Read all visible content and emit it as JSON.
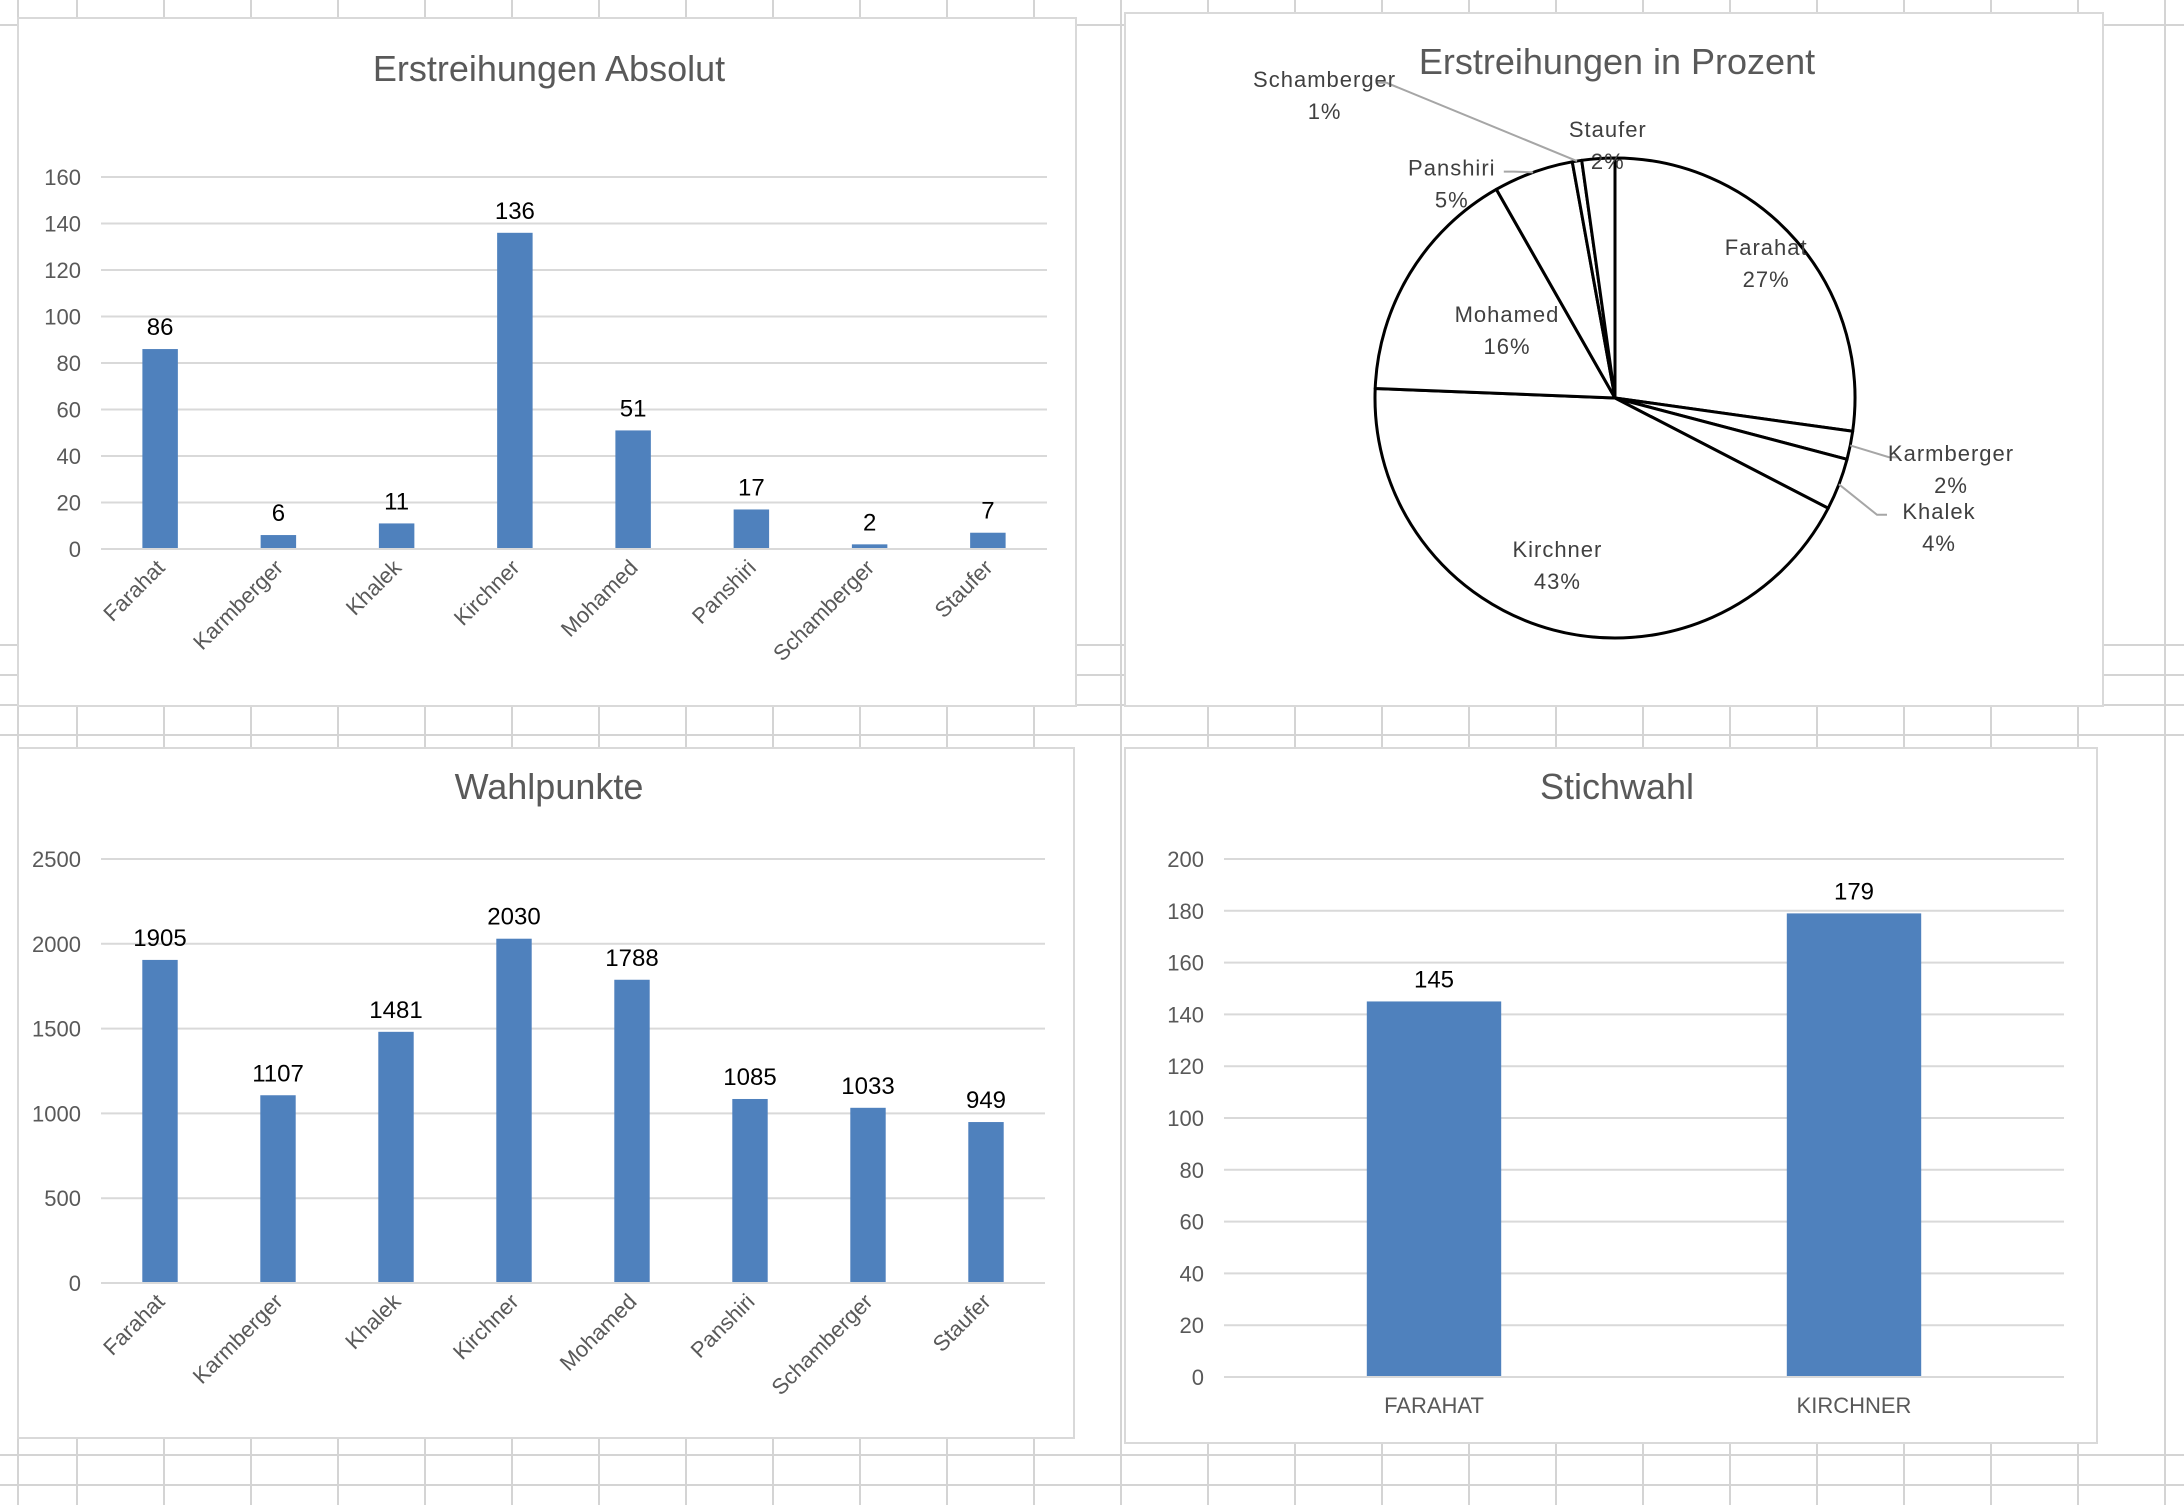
{
  "chart_data": [
    {
      "id": "c1",
      "type": "bar",
      "title": "Erstreihungen Absolut",
      "categories": [
        "Farahat",
        "Karmberger",
        "Khalek",
        "Kirchner",
        "Mohamed",
        "Panshiri",
        "Schamberger",
        "Staufer"
      ],
      "values": [
        86,
        6,
        11,
        136,
        51,
        17,
        2,
        7
      ],
      "ylim": [
        0,
        160
      ],
      "yticks": [
        "0",
        "20",
        "40",
        "60",
        "80",
        "100",
        "120",
        "140",
        "160"
      ],
      "grid": true,
      "data_labels": true,
      "color": "#4F81BD"
    },
    {
      "id": "c2",
      "type": "pie",
      "title": "Erstreihungen in Prozent",
      "labels": [
        "Farahat",
        "Karmberger",
        "Khalek",
        "Kirchner",
        "Mohamed",
        "Panshiri",
        "Schamberger",
        "Staufer"
      ],
      "values": [
        86,
        6,
        11,
        136,
        51,
        17,
        2,
        7
      ],
      "percent_labels": [
        "27%",
        "2%",
        "4%",
        "43%",
        "16%",
        "5%",
        "1%",
        "2%"
      ],
      "fill": "#ffffff",
      "stroke": "#000000"
    },
    {
      "id": "c3",
      "type": "bar",
      "title": "Wahlpunkte",
      "categories": [
        "Farahat",
        "Karmberger",
        "Khalek",
        "Kirchner",
        "Mohamed",
        "Panshiri",
        "Schamberger",
        "Staufer"
      ],
      "values": [
        1905,
        1107,
        1481,
        2030,
        1788,
        1085,
        1033,
        949
      ],
      "ylim": [
        0,
        2500
      ],
      "yticks": [
        "0",
        "500",
        "1000",
        "1500",
        "2000",
        "2500"
      ],
      "grid": true,
      "data_labels": true,
      "color": "#4F81BD"
    },
    {
      "id": "c4",
      "type": "bar",
      "title": "Stichwahl",
      "categories": [
        "FARAHAT",
        "KIRCHNER"
      ],
      "values": [
        145,
        179
      ],
      "ylim": [
        0,
        200
      ],
      "yticks": [
        "0",
        "20",
        "40",
        "60",
        "80",
        "100",
        "120",
        "140",
        "160",
        "180",
        "200"
      ],
      "grid": true,
      "data_labels": true,
      "color": "#4F81BD"
    }
  ]
}
